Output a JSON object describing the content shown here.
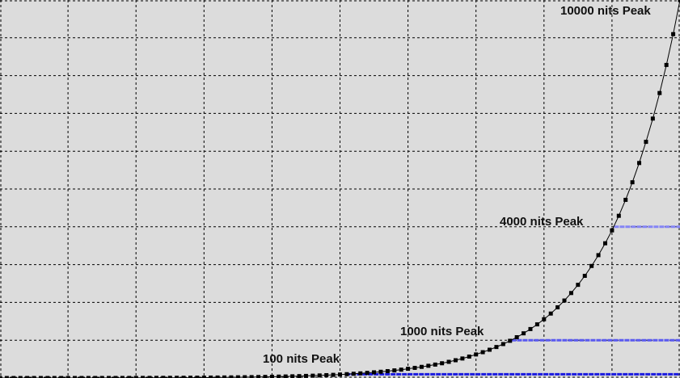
{
  "chart_data": {
    "type": "line",
    "title": "",
    "xlabel": "",
    "ylabel": "",
    "xlim": [
      0,
      1
    ],
    "ylim": [
      0,
      10000
    ],
    "grid": true,
    "grid_x_step": 0.1,
    "grid_y_step": 1000,
    "series": [
      {
        "color": "#000000",
        "marker": "square",
        "x": [
          0,
          0.01,
          0.02,
          0.03,
          0.04,
          0.05,
          0.06,
          0.07,
          0.08,
          0.09,
          0.1,
          0.11,
          0.12,
          0.13,
          0.14,
          0.15,
          0.16,
          0.17,
          0.18,
          0.19,
          0.2,
          0.21,
          0.22,
          0.23,
          0.24,
          0.25,
          0.26,
          0.27,
          0.28,
          0.29,
          0.3,
          0.31,
          0.32,
          0.33,
          0.34,
          0.35,
          0.36,
          0.37,
          0.38,
          0.39,
          0.4,
          0.41,
          0.42,
          0.43,
          0.44,
          0.45,
          0.46,
          0.47,
          0.48,
          0.49,
          0.5,
          0.51,
          0.52,
          0.53,
          0.54,
          0.55,
          0.56,
          0.57,
          0.58,
          0.59,
          0.6,
          0.61,
          0.62,
          0.63,
          0.64,
          0.65,
          0.66,
          0.67,
          0.68,
          0.69,
          0.7,
          0.71,
          0.72,
          0.73,
          0.74,
          0.75,
          0.76,
          0.77,
          0.78,
          0.79,
          0.8,
          0.81,
          0.82,
          0.83,
          0.84,
          0.85,
          0.86,
          0.87,
          0.88,
          0.89,
          0.9,
          0.91,
          0.92,
          0.93,
          0.94,
          0.95,
          0.96,
          0.97,
          0.98,
          0.99,
          1.0
        ],
        "y": [
          0,
          0.01,
          0.02,
          0.04,
          0.06,
          0.08,
          0.12,
          0.15,
          0.2,
          0.26,
          0.32,
          0.39,
          0.48,
          0.59,
          0.72,
          0.88,
          1.08,
          1.32,
          1.62,
          1.98,
          2.44,
          2.81,
          3.25,
          3.75,
          4.32,
          4.99,
          5.75,
          6.64,
          7.66,
          8.83,
          10.2,
          11.5,
          12.9,
          14.5,
          16.3,
          18.4,
          20.7,
          23.3,
          26.2,
          29.4,
          33.1,
          36.7,
          40.6,
          45.0,
          49.9,
          55.2,
          61.2,
          67.8,
          75.1,
          83.2,
          92.2,
          101.6,
          112,
          123,
          136,
          150,
          165,
          182,
          201,
          221,
          244,
          268,
          294,
          323,
          355,
          390,
          428,
          470,
          516,
          567,
          623,
          683,
          748,
          820,
          898,
          984,
          1079,
          1182,
          1295,
          1419,
          1555,
          1705,
          1870,
          2050,
          2248,
          2465,
          2703,
          2964,
          3250,
          3564,
          3906,
          4291,
          4713,
          5178,
          5688,
          6248,
          6863,
          7539,
          8282,
          9097,
          10000
        ]
      }
    ],
    "reference_lines": [
      {
        "label": "100 nits Peak",
        "y": 100,
        "x_start": 0.508,
        "color": "#1a1ae0"
      },
      {
        "label": "1000 nits Peak",
        "y": 1000,
        "x_start": 0.752,
        "color": "#5a5af0"
      },
      {
        "label": "4000 nits Peak",
        "y": 4000,
        "x_start": 0.903,
        "color": "#8585f5"
      }
    ],
    "annotations": [
      {
        "text": "10000 nits Peak",
        "y": 10000
      }
    ]
  }
}
